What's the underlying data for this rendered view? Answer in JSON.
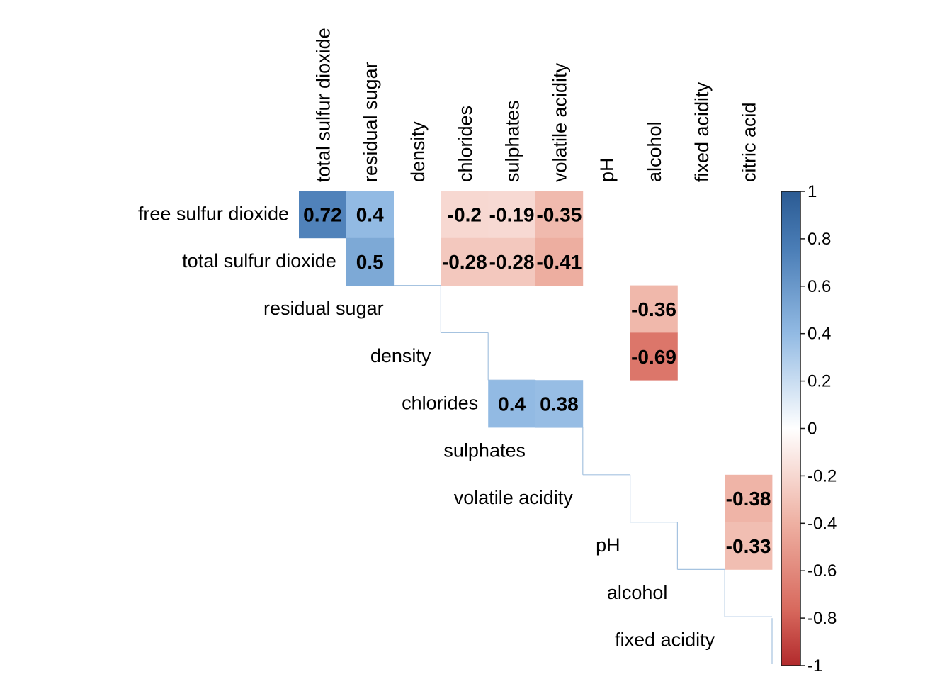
{
  "chart_data": {
    "type": "heatmap",
    "subtype": "upper-triangular correlation matrix",
    "row_labels": [
      "free sulfur dioxide",
      "total sulfur dioxide",
      "residual sugar",
      "density",
      "chlorides",
      "sulphates",
      "volatile acidity",
      "pH",
      "alcohol",
      "fixed acidity"
    ],
    "column_labels": [
      "total sulfur dioxide",
      "residual sugar",
      "density",
      "chlorides",
      "sulphates",
      "volatile acidity",
      "pH",
      "alcohol",
      "fixed acidity",
      "citric acid"
    ],
    "cells": [
      {
        "row": "free sulfur dioxide",
        "col": "total sulfur dioxide",
        "value": 0.72,
        "label": "0.72"
      },
      {
        "row": "free sulfur dioxide",
        "col": "residual sugar",
        "value": 0.4,
        "label": "0.4"
      },
      {
        "row": "free sulfur dioxide",
        "col": "chlorides",
        "value": -0.2,
        "label": "-0.2"
      },
      {
        "row": "free sulfur dioxide",
        "col": "sulphates",
        "value": -0.19,
        "label": "-0.19"
      },
      {
        "row": "free sulfur dioxide",
        "col": "volatile acidity",
        "value": -0.35,
        "label": "-0.35"
      },
      {
        "row": "total sulfur dioxide",
        "col": "residual sugar",
        "value": 0.5,
        "label": "0.5"
      },
      {
        "row": "total sulfur dioxide",
        "col": "chlorides",
        "value": -0.28,
        "label": "-0.28"
      },
      {
        "row": "total sulfur dioxide",
        "col": "sulphates",
        "value": -0.28,
        "label": "-0.28"
      },
      {
        "row": "total sulfur dioxide",
        "col": "volatile acidity",
        "value": -0.41,
        "label": "-0.41"
      },
      {
        "row": "residual sugar",
        "col": "alcohol",
        "value": -0.36,
        "label": "-0.36"
      },
      {
        "row": "density",
        "col": "alcohol",
        "value": -0.69,
        "label": "-0.69"
      },
      {
        "row": "chlorides",
        "col": "sulphates",
        "value": 0.4,
        "label": "0.4"
      },
      {
        "row": "chlorides",
        "col": "volatile acidity",
        "value": 0.38,
        "label": "0.38"
      },
      {
        "row": "volatile acidity",
        "col": "citric acid",
        "value": -0.38,
        "label": "-0.38"
      },
      {
        "row": "pH",
        "col": "citric acid",
        "value": -0.33,
        "label": "-0.33"
      }
    ],
    "colorbar": {
      "range": [
        -1,
        1
      ],
      "ticks": [
        "1",
        "0.8",
        "0.6",
        "0.4",
        "0.2",
        "0",
        "-0.2",
        "-0.4",
        "-0.6",
        "-0.8",
        "-1"
      ],
      "colors": {
        "negative": "#b2182b",
        "zero": "#ffffff",
        "positive": "#2166ac"
      }
    },
    "colors": {
      "cell_text": "#000000",
      "label_text": "#000000",
      "outline": "#a6c3e0",
      "colorbar_border": "#1a1a1a"
    }
  }
}
